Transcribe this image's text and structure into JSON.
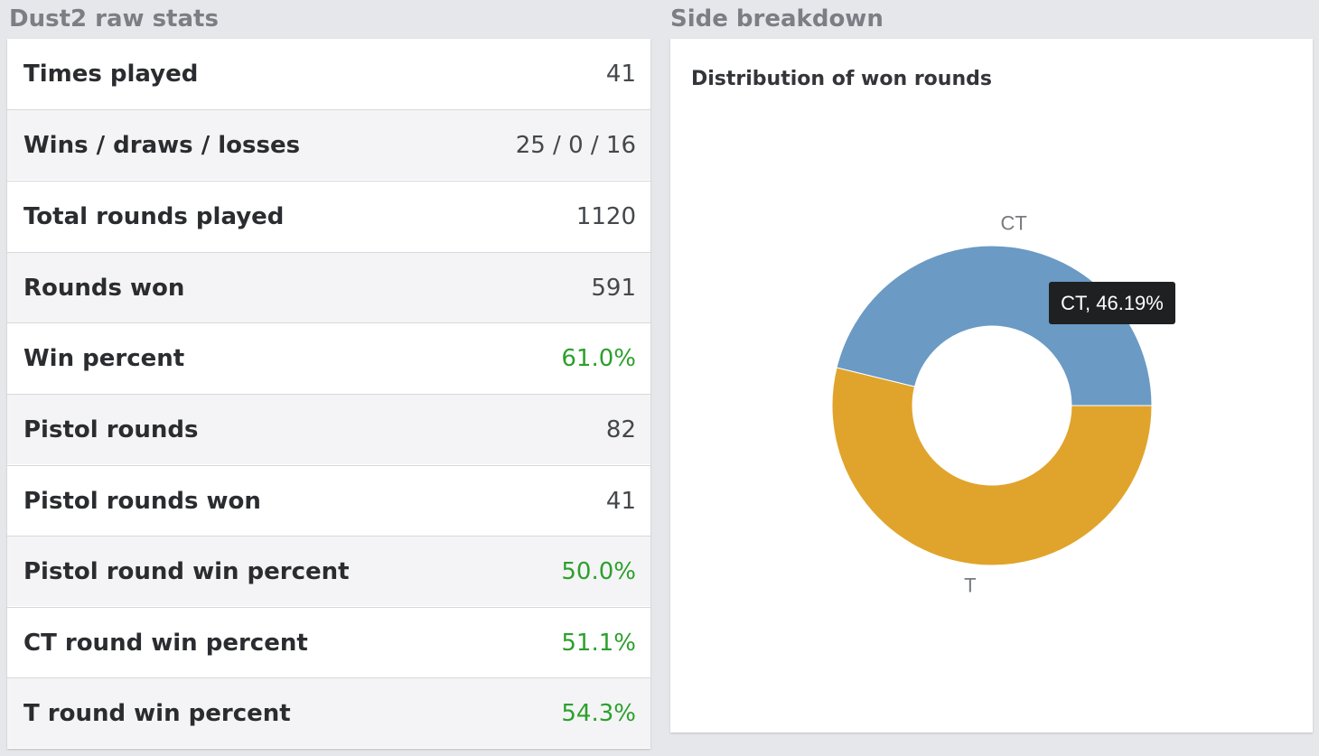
{
  "stats": {
    "title": "Dust2 raw stats",
    "rows": [
      {
        "label": "Times played",
        "value": "41",
        "highlight": false
      },
      {
        "label": "Wins / draws / losses",
        "value": "25 / 0 / 16",
        "highlight": false
      },
      {
        "label": "Total rounds played",
        "value": "1120",
        "highlight": false
      },
      {
        "label": "Rounds won",
        "value": "591",
        "highlight": false
      },
      {
        "label": "Win percent",
        "value": "61.0%",
        "highlight": true
      },
      {
        "label": "Pistol rounds",
        "value": "82",
        "highlight": false
      },
      {
        "label": "Pistol rounds won",
        "value": "41",
        "highlight": false
      },
      {
        "label": "Pistol round win percent",
        "value": "50.0%",
        "highlight": true
      },
      {
        "label": "CT round win percent",
        "value": "51.1%",
        "highlight": true
      },
      {
        "label": "T round win percent",
        "value": "54.3%",
        "highlight": true
      }
    ],
    "highlight_color": "#2ca02c"
  },
  "side": {
    "title": "Side breakdown",
    "tooltip": "CT, 46.19%"
  },
  "chart_data": {
    "type": "pie",
    "title": "Distribution of won rounds",
    "slices": [
      {
        "label": "CT",
        "value": 46.19,
        "color": "#6b9ac4"
      },
      {
        "label": "T",
        "value": 53.81,
        "color": "#e0a42c"
      }
    ],
    "donut": true,
    "legend": "none"
  }
}
